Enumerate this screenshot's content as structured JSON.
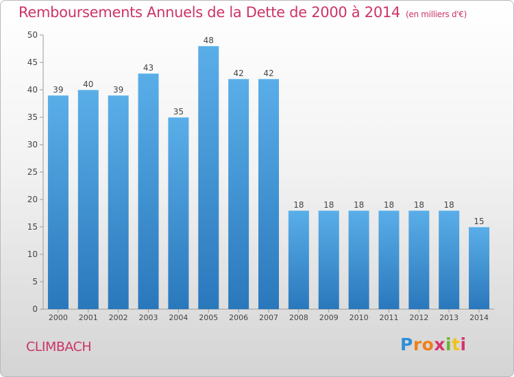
{
  "header": {
    "title": "Remboursements Annuels de la Dette de 2000 à 2014",
    "unit": "(en milliers d'€)"
  },
  "footer": {
    "city": "CLIMBACH",
    "logo_text": "Proxiti",
    "logo_colors": [
      "#2f8fd4",
      "#ef7f1a",
      "#6bb42d",
      "#d6336c",
      "#f2c21a"
    ]
  },
  "chart_data": {
    "type": "bar",
    "title": "Remboursements Annuels de la Dette de 2000 à 2014",
    "subtitle": "(en milliers d'€)",
    "xlabel": "",
    "ylabel": "",
    "categories": [
      "2000",
      "2001",
      "2002",
      "2003",
      "2004",
      "2005",
      "2006",
      "2007",
      "2008",
      "2009",
      "2010",
      "2011",
      "2012",
      "2013",
      "2014"
    ],
    "values": [
      39,
      40,
      39,
      43,
      35,
      48,
      42,
      42,
      18,
      18,
      18,
      18,
      18,
      18,
      15
    ],
    "ylim": [
      0,
      50
    ],
    "yticks": [
      0,
      5,
      10,
      15,
      20,
      25,
      30,
      35,
      40,
      45,
      50
    ],
    "grid": false,
    "bar_color": "#3c8fd6",
    "title_color": "#cc3366"
  }
}
